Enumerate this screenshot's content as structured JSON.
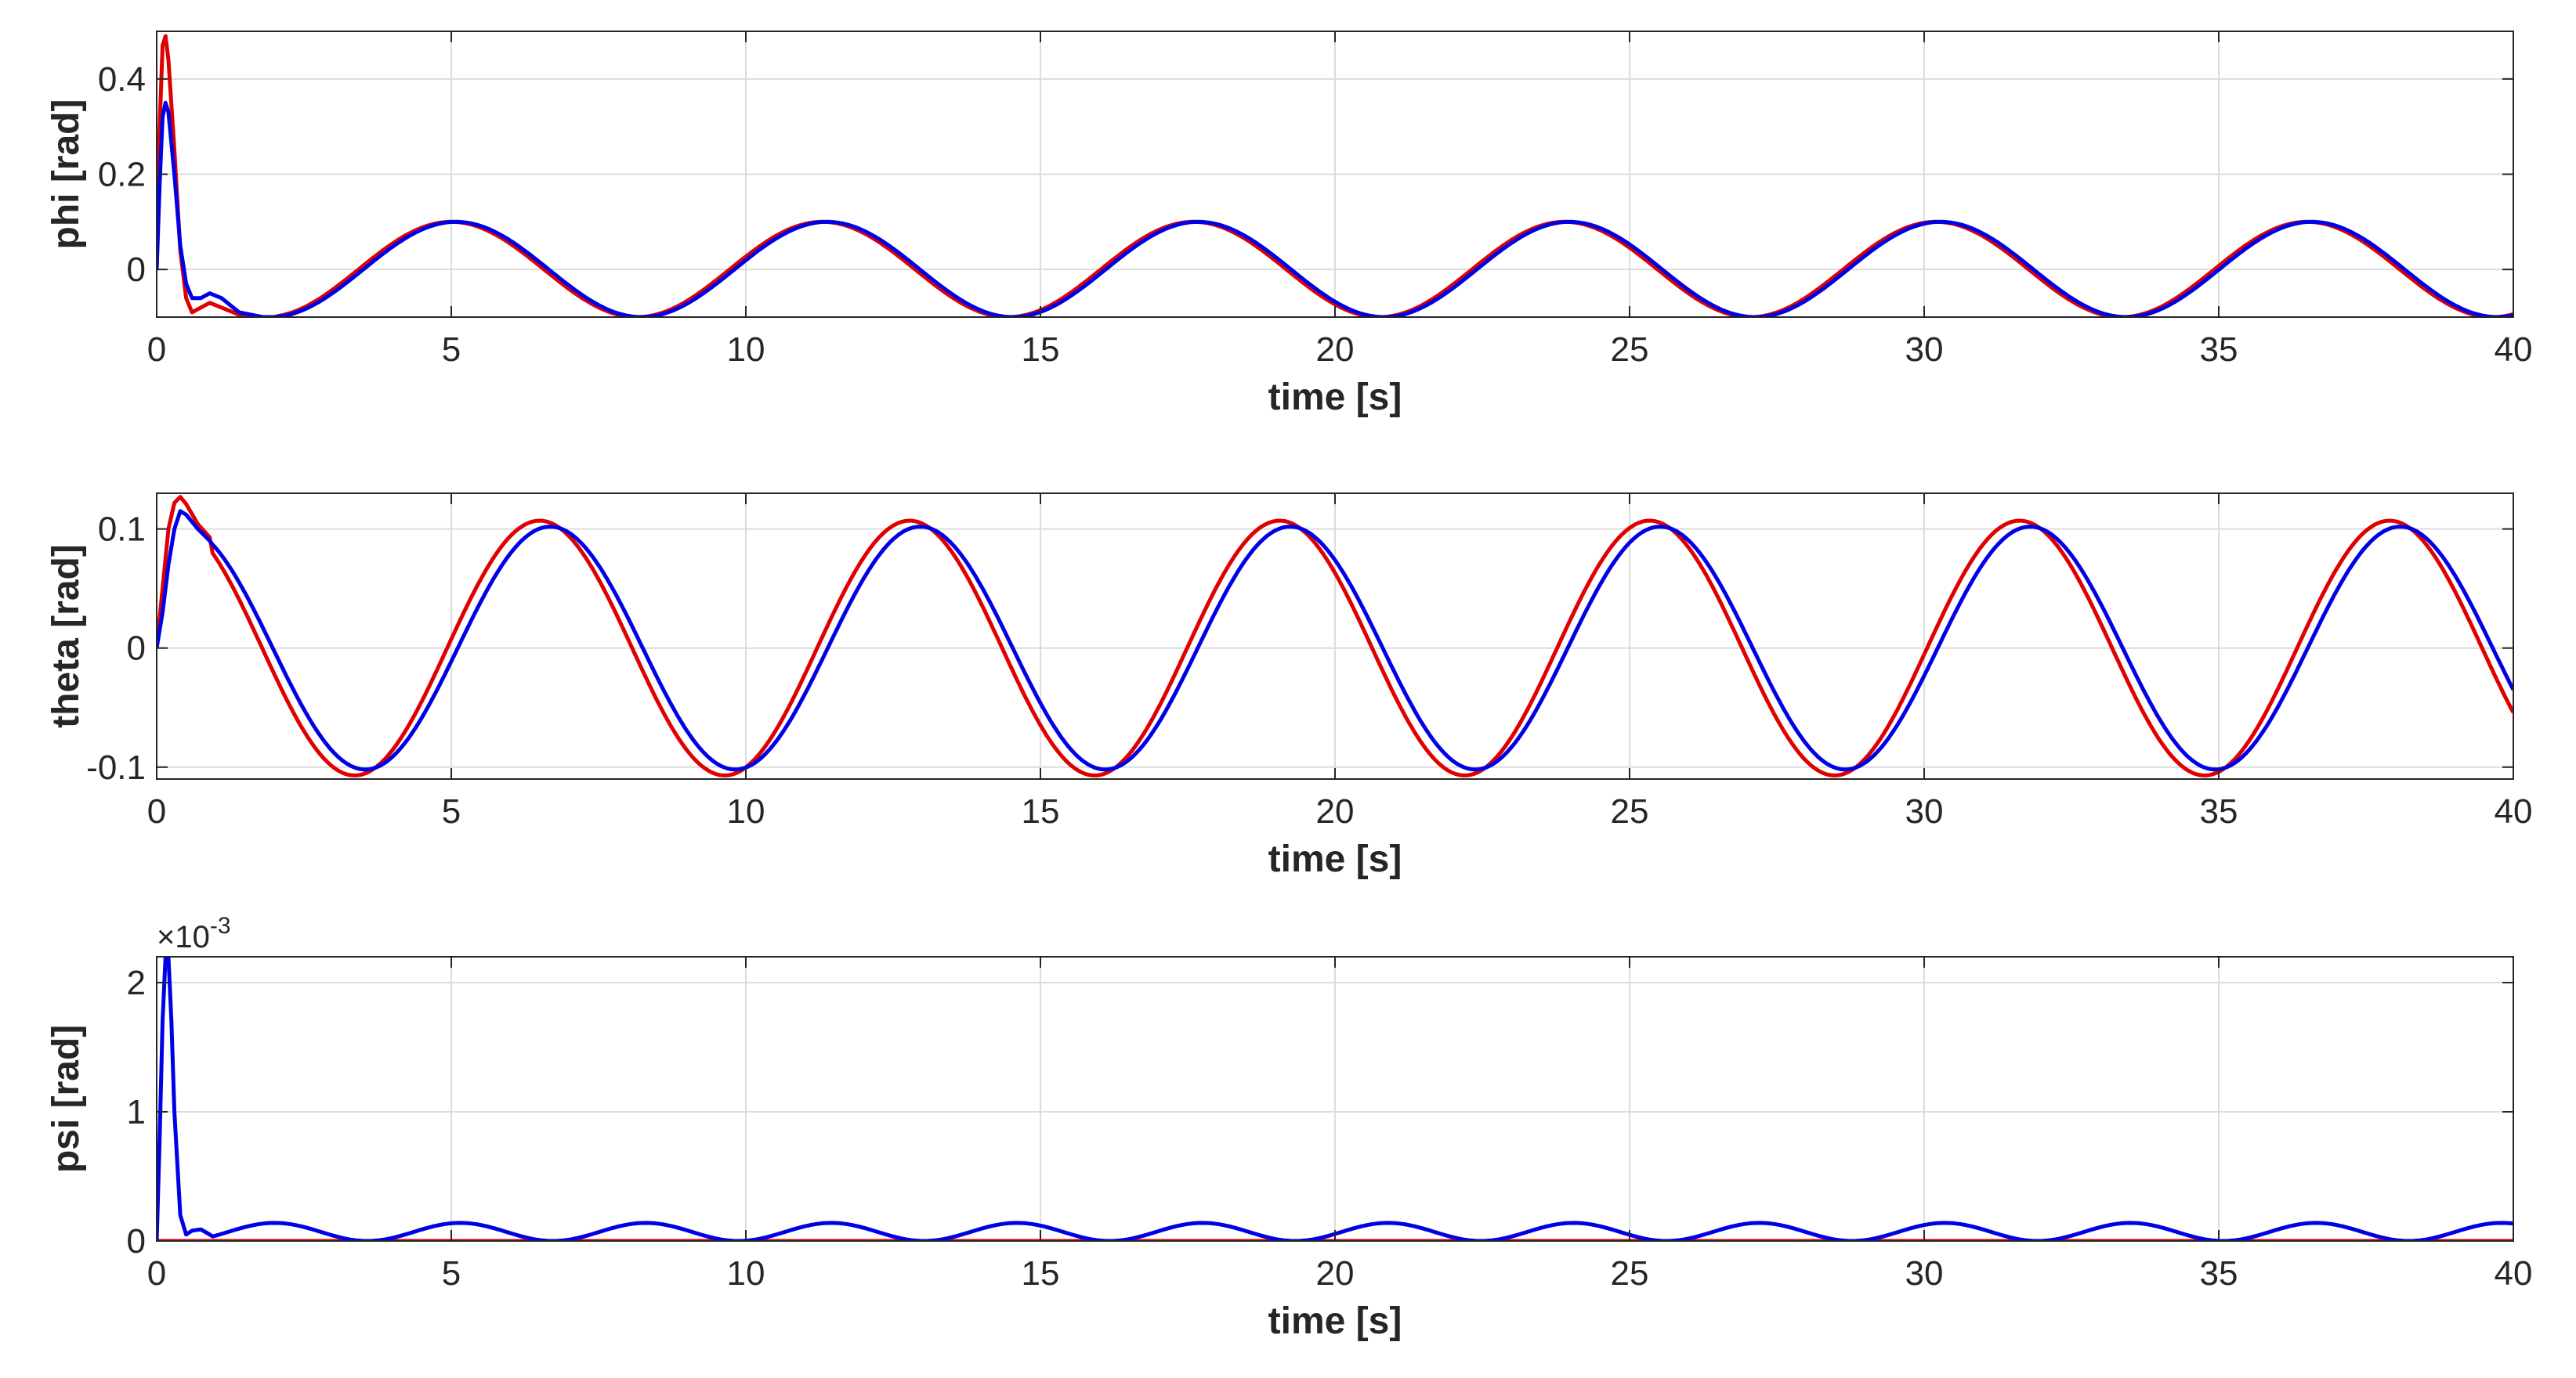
{
  "chart_data": [
    {
      "type": "line",
      "id": "phi",
      "xlabel": "time [s]",
      "ylabel": "phi [rad]",
      "xlim": [
        0,
        40
      ],
      "ylim": [
        -0.1,
        0.5
      ],
      "grid": true,
      "exponent_label": "",
      "xticks": [
        0,
        5,
        10,
        15,
        20,
        25,
        30,
        35,
        40
      ],
      "yticks": [
        0,
        0.2,
        0.4
      ],
      "ytick_labels": [
        "0",
        "0.2",
        "0.4"
      ],
      "series": [
        {
          "name": "red",
          "color": "#e00000",
          "x": [
            0,
            0.05,
            0.1,
            0.15,
            0.2,
            0.3,
            0.4,
            0.5,
            0.6,
            0.75,
            0.9,
            1.1,
            1.4,
            1.8,
            2.0
          ],
          "y": [
            0,
            0.3,
            0.47,
            0.49,
            0.44,
            0.25,
            0.04,
            -0.06,
            -0.09,
            -0.08,
            -0.07,
            -0.08,
            -0.095,
            -0.1,
            -0.1
          ],
          "tail": {
            "from": 2.0,
            "to": 40,
            "center": 0.0,
            "amplitude": 0.1,
            "period": 6.3,
            "phase_peak_t": 5.0
          }
        },
        {
          "name": "blue",
          "color": "#0000e6",
          "x": [
            0,
            0.05,
            0.1,
            0.15,
            0.2,
            0.3,
            0.4,
            0.5,
            0.6,
            0.75,
            0.9,
            1.1,
            1.4,
            1.8,
            2.0
          ],
          "y": [
            0,
            0.18,
            0.32,
            0.35,
            0.33,
            0.2,
            0.05,
            -0.03,
            -0.06,
            -0.06,
            -0.05,
            -0.06,
            -0.09,
            -0.1,
            -0.1
          ],
          "tail": {
            "from": 2.0,
            "to": 40,
            "center": 0.0,
            "amplitude": 0.1,
            "period": 6.3,
            "phase_peak_t": 5.08
          }
        }
      ]
    },
    {
      "type": "line",
      "id": "theta",
      "xlabel": "time [s]",
      "ylabel": "theta [rad]",
      "xlim": [
        0,
        40
      ],
      "ylim": [
        -0.11,
        0.13
      ],
      "grid": true,
      "exponent_label": "",
      "xticks": [
        0,
        5,
        10,
        15,
        20,
        25,
        30,
        35,
        40
      ],
      "yticks": [
        -0.1,
        0,
        0.1
      ],
      "ytick_labels": [
        "-0.1",
        "0",
        "0.1"
      ],
      "series": [
        {
          "name": "red",
          "color": "#e00000",
          "x": [
            0,
            0.1,
            0.2,
            0.3,
            0.4,
            0.5,
            0.7,
            0.9
          ],
          "y": [
            0,
            0.05,
            0.1,
            0.122,
            0.127,
            0.121,
            0.104,
            0.093
          ],
          "tail": {
            "from": 0.9,
            "to": 40,
            "center": 0.0,
            "amplitude": 0.107,
            "period": 6.28,
            "phase_peak_t": 6.5
          }
        },
        {
          "name": "blue",
          "color": "#0000e6",
          "x": [
            0,
            0.1,
            0.2,
            0.3,
            0.4,
            0.5,
            0.7,
            0.9
          ],
          "y": [
            0,
            0.03,
            0.07,
            0.1,
            0.115,
            0.112,
            0.1,
            0.09
          ],
          "tail": {
            "from": 0.9,
            "to": 40,
            "center": 0.0,
            "amplitude": 0.102,
            "period": 6.28,
            "phase_peak_t": 6.68
          }
        }
      ]
    },
    {
      "type": "line",
      "id": "psi",
      "xlabel": "time [s]",
      "ylabel": "psi [rad]",
      "xlim": [
        0,
        40
      ],
      "ylim": [
        0,
        0.0022
      ],
      "grid": true,
      "exponent_label": "×10",
      "exponent_power": "-3",
      "xticks": [
        0,
        5,
        10,
        15,
        20,
        25,
        30,
        35,
        40
      ],
      "yticks": [
        0,
        0.001,
        0.002
      ],
      "ytick_labels": [
        "0",
        "1",
        "2"
      ],
      "series": [
        {
          "name": "red",
          "color": "#e00000",
          "x": [
            0,
            40
          ],
          "y": [
            0,
            0
          ],
          "tail": null
        },
        {
          "name": "blue",
          "color": "#0000e6",
          "x": [
            0,
            0.05,
            0.1,
            0.15,
            0.2,
            0.25,
            0.3,
            0.4,
            0.5,
            0.6,
            0.75,
            0.9
          ],
          "y": [
            0,
            0.0008,
            0.0017,
            0.0022,
            0.0022,
            0.0017,
            0.001,
            0.0002,
            5e-05,
            8e-05,
            9e-05,
            5e-05
          ],
          "tail": {
            "from": 0.9,
            "to": 40,
            "center": 7e-05,
            "amplitude": 7e-05,
            "period": 3.15,
            "phase_peak_t": 2.0
          }
        }
      ]
    }
  ]
}
